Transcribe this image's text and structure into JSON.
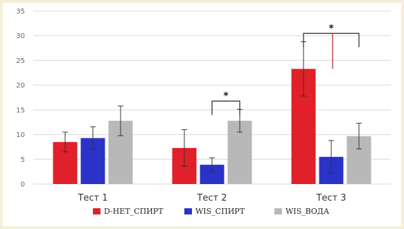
{
  "chart_data": {
    "type": "bar",
    "categories": [
      "Тест 1",
      "Тест 2",
      "Тест 3"
    ],
    "series": [
      {
        "name": "D-НЕТ_СПИРТ",
        "color": "#e0202a",
        "values": [
          8.5,
          7.3,
          23.3
        ],
        "errors": [
          2.0,
          3.7,
          5.5
        ]
      },
      {
        "name": "WIS_СПИРТ",
        "color": "#2b32c8",
        "values": [
          9.3,
          3.9,
          5.5
        ],
        "errors": [
          2.3,
          1.4,
          3.3
        ]
      },
      {
        "name": "WIS_ВОДА",
        "color": "#b8b8b8",
        "values": [
          12.8,
          12.8,
          9.7
        ],
        "errors": [
          3.0,
          2.3,
          2.6
        ]
      }
    ],
    "ylim": [
      0,
      35
    ],
    "yticks": [
      0,
      5,
      10,
      15,
      20,
      25,
      30,
      35
    ],
    "grid": true,
    "legend_position": "bottom",
    "significance": [
      {
        "category_index": 1,
        "from_series": 1,
        "to_series": 2,
        "label": "*"
      },
      {
        "category_index": 2,
        "from_series": 0,
        "to_series": 2,
        "label": "*"
      }
    ],
    "colors": {
      "gridline": "#d9d9d9",
      "error_bar": "#333333",
      "bracket": "#222222",
      "red_line": "#b02020"
    }
  }
}
